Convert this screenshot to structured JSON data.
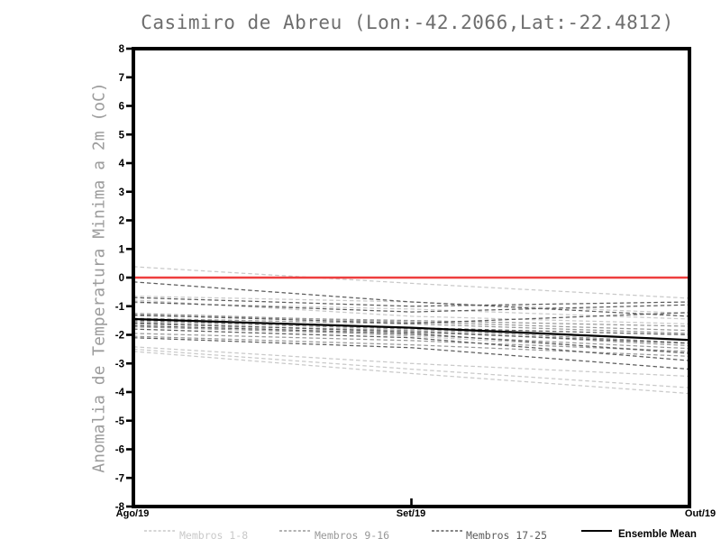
{
  "chart_data": {
    "type": "line",
    "title": "Casimiro de Abreu (Lon:-42.2066,Lat:-22.4812)",
    "ylabel": "Anomalia de Temperatura Minima a 2m (oC)",
    "xlabel": "",
    "categories": [
      "Ago/19",
      "Set/19",
      "Out/19"
    ],
    "ylim": [
      -8,
      8
    ],
    "yticks": [
      8,
      7,
      6,
      5,
      4,
      3,
      2,
      1,
      0,
      -1,
      -2,
      -3,
      -4,
      -5,
      -6,
      -7,
      -8
    ],
    "grid": false,
    "legend_position": "bottom",
    "frame_color": "#000000",
    "background": "#ffffff",
    "zero_line": {
      "value": 0,
      "color": "#ee3e3e"
    },
    "groups": [
      {
        "name": "Membros 1-8",
        "color": "#c9c9c9",
        "style": "dashed",
        "members": [
          [
            0.38,
            -0.2,
            -0.72
          ],
          [
            -0.65,
            -0.85,
            -1.25
          ],
          [
            -0.78,
            -1.35,
            -1.62
          ],
          [
            -0.88,
            -1.1,
            -1.45
          ],
          [
            -1.55,
            -2.05,
            -2.6
          ],
          [
            -2.42,
            -3.0,
            -3.45
          ],
          [
            -2.5,
            -3.2,
            -3.85
          ],
          [
            -2.58,
            -3.35,
            -4.05
          ]
        ]
      },
      {
        "name": "Membros 9-16",
        "color": "#989898",
        "style": "dashed",
        "members": [
          [
            -1.25,
            -1.55,
            -1.85
          ],
          [
            -1.33,
            -1.5,
            -1.7
          ],
          [
            -1.42,
            -1.62,
            -1.95
          ],
          [
            -1.52,
            -1.8,
            -2.28
          ],
          [
            -1.62,
            -1.85,
            -2.38
          ],
          [
            -1.72,
            -2.0,
            -2.48
          ],
          [
            -1.95,
            -2.2,
            -2.58
          ],
          [
            -2.05,
            -2.35,
            -2.75
          ]
        ]
      },
      {
        "name": "Membros 17-25",
        "color": "#5c5c5c",
        "style": "dashed",
        "members": [
          [
            -0.15,
            -0.85,
            -1.35
          ],
          [
            -0.7,
            -1.0,
            -0.85
          ],
          [
            -0.85,
            -1.2,
            -0.95
          ],
          [
            -1.3,
            -1.6,
            -1.22
          ],
          [
            -1.48,
            -1.75,
            -2.0
          ],
          [
            -1.58,
            -1.9,
            -2.3
          ],
          [
            -1.68,
            -1.95,
            -2.65
          ],
          [
            -1.8,
            -2.1,
            -2.9
          ],
          [
            -2.1,
            -2.45,
            -3.2
          ]
        ]
      }
    ],
    "ensemble_mean": {
      "name": "Ensemble Mean",
      "color": "#000000",
      "style": "solid",
      "values": [
        -1.45,
        -1.75,
        -2.18
      ]
    }
  }
}
